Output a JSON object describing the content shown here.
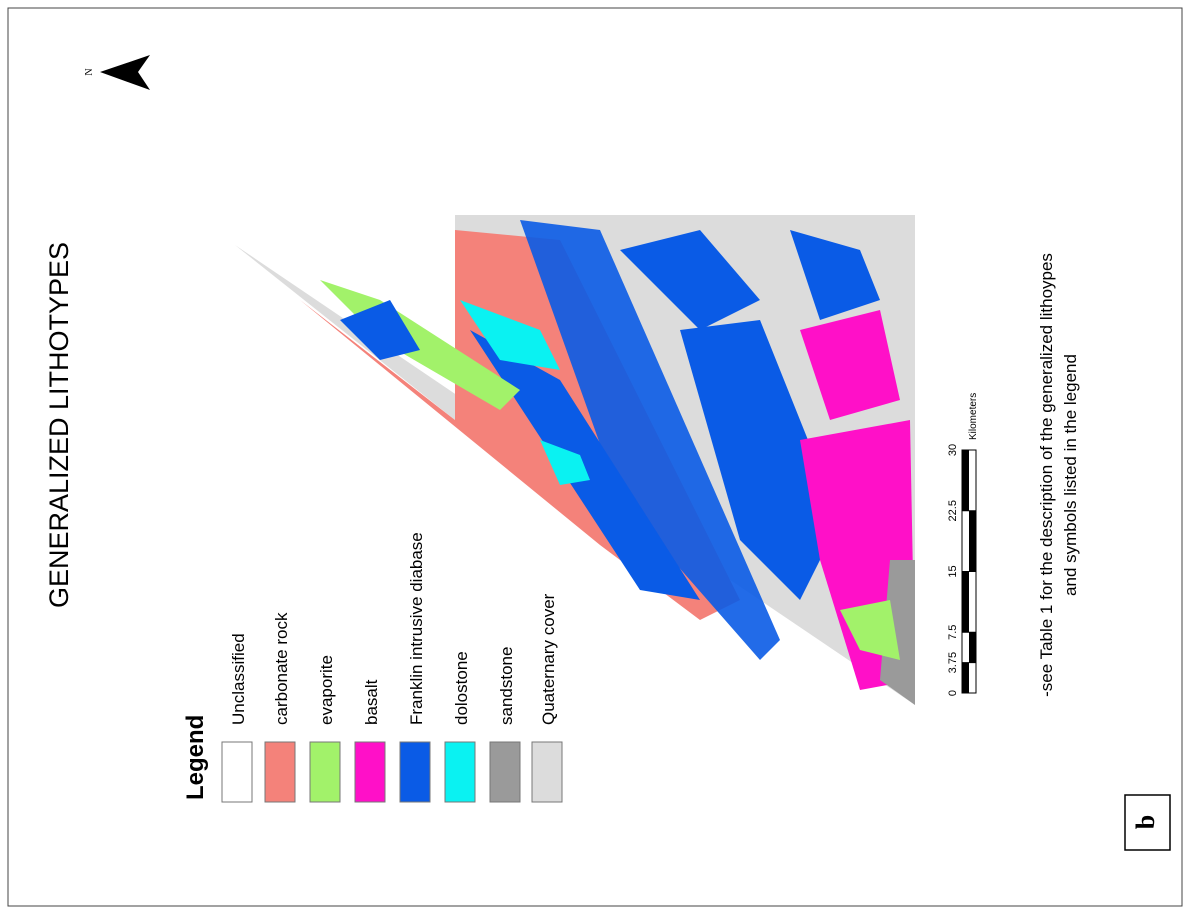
{
  "title": "GENERALIZED LITHOTYPES",
  "north_label": "N",
  "legend": {
    "title": "Legend",
    "items": [
      {
        "label": "Unclassified",
        "color": "#ffffff"
      },
      {
        "label": "carbonate rock",
        "color": "#f4827a"
      },
      {
        "label": "evaporite",
        "color": "#a2f26a"
      },
      {
        "label": "basalt",
        "color": "#ff10c8"
      },
      {
        "label": "Franklin intrusive diabase",
        "color": "#0a5be6"
      },
      {
        "label": "dolostone",
        "color": "#0af2f2"
      },
      {
        "label": "sandstone",
        "color": "#9a9a9a"
      },
      {
        "label": "Quaternary cover",
        "color": "#dcdcdc"
      }
    ]
  },
  "scale": {
    "unit": "Kilometers",
    "ticks": [
      0,
      3.75,
      7.5,
      15,
      22.5,
      30
    ]
  },
  "note": [
    "-see Table 1 for the description of the generalized lithoypes",
    "and symbols listed in the legend"
  ],
  "panel_label": "b"
}
